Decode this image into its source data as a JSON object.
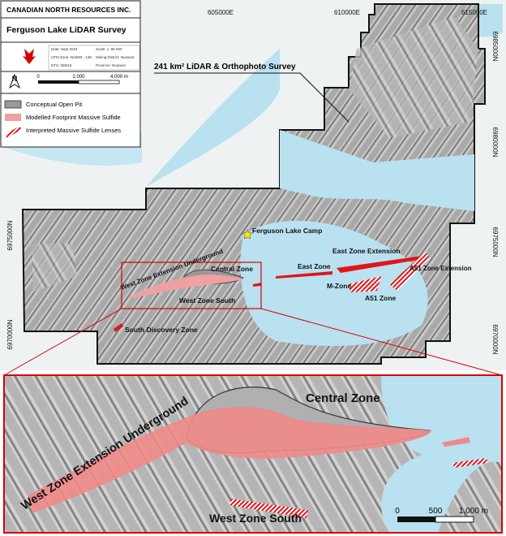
{
  "title_block": {
    "company": "CANADIAN NORTH RESOURCES INC.",
    "title": "Ferguson Lake LiDAR Survey",
    "meta": [
      "Date: Sept 2024",
      "Scale: 1: 96 000",
      "UTM Zone: NAD83 - 14N",
      "Mining District: Nunavut",
      "NTS: 065I15",
      "Province: Nunavut"
    ]
  },
  "north": "N",
  "scale_bar": [
    "0",
    "2,000",
    "4,000 m"
  ],
  "legend": [
    "Conceptual Open Pit",
    "Modelled  Footprint Massive Sulfide",
    "Interpreted Massive Sulfide Lenses"
  ],
  "grid_labels": {
    "top": [
      "605000E",
      "610000E",
      "615000E"
    ],
    "left": [
      "6975000N",
      "6970000N"
    ],
    "right": [
      "6985000N",
      "6980000N",
      "6975000N",
      "6970000N"
    ]
  },
  "survey_label": "241 km² LiDAR & Orthophoto Survey",
  "camp": "Ferguson Lake Camp",
  "zones": [
    "Central Zone",
    "West Zone Extension Underground",
    "West Zone South",
    "East Zone",
    "East Zone Extension",
    "M-Zone",
    "A51 Zone Extension",
    "A51 Zone",
    "South Discovery Zone"
  ],
  "inset": {
    "labels": [
      "Central Zone",
      "West Zone Extension Underground",
      "West Zone South"
    ],
    "scale_bar": [
      "0",
      "500",
      "1,000 m"
    ]
  }
}
